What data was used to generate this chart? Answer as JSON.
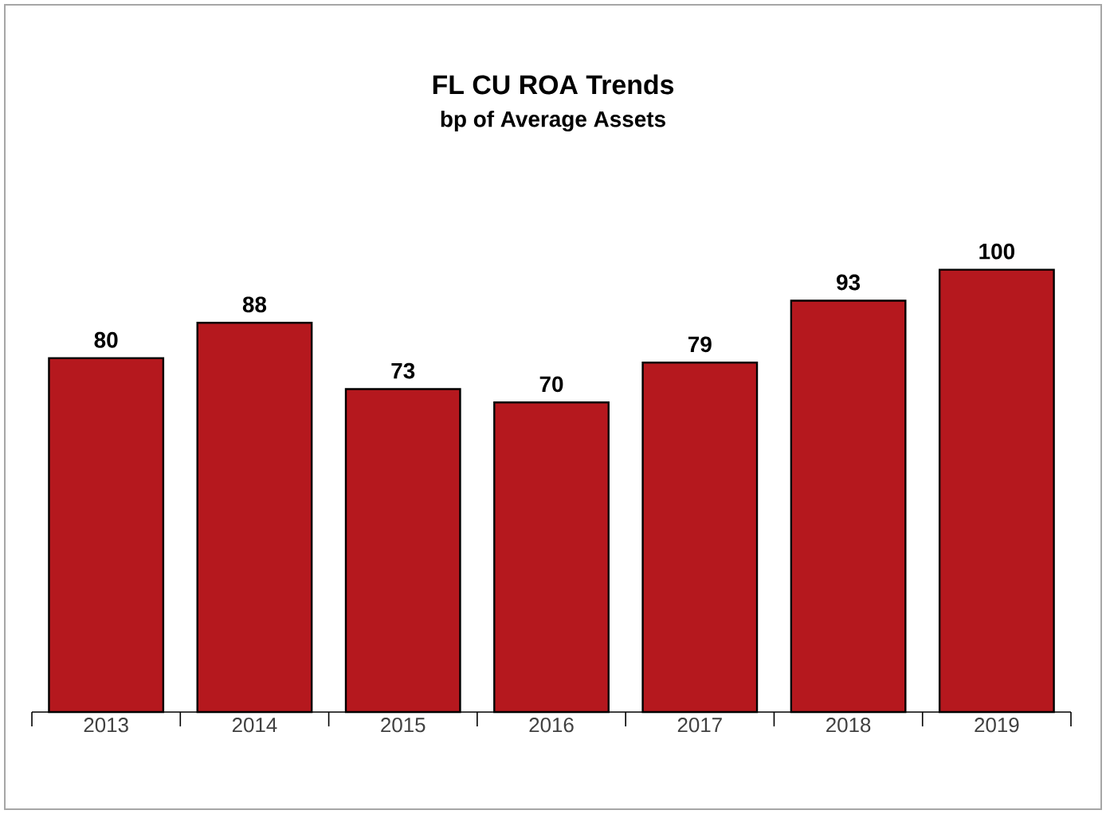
{
  "chart_data": {
    "type": "bar",
    "title": "FL CU ROA Trends",
    "subtitle": "bp of Average Assets",
    "categories": [
      "2013",
      "2014",
      "2015",
      "2016",
      "2017",
      "2018",
      "2019"
    ],
    "values": [
      80,
      88,
      73,
      70,
      79,
      93,
      100
    ],
    "color": "#b5181e",
    "data_labels": true
  }
}
